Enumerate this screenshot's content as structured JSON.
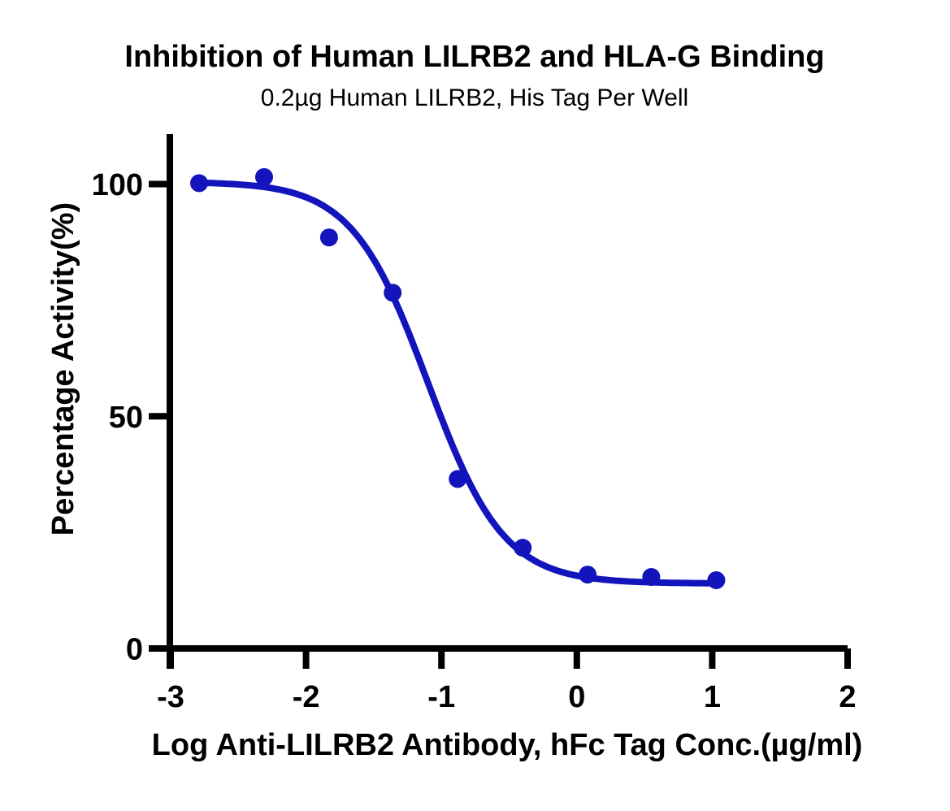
{
  "title": "Inhibition of Human LILRB2 and HLA-G Binding",
  "subtitle": "0.2µg Human LILRB2, His Tag Per Well",
  "chart_data": {
    "type": "scatter",
    "title": "Inhibition of Human LILRB2 and HLA-G Binding",
    "subtitle": "0.2µg Human LILRB2, His Tag Per Well",
    "xlabel": "Log Anti-LILRB2 Antibody, hFc Tag Conc.(µg/ml)",
    "ylabel": "Percentage Activity(%)",
    "x": [
      -2.79,
      -2.31,
      -1.83,
      -1.36,
      -0.88,
      -0.4,
      0.08,
      0.55,
      1.03
    ],
    "y": [
      100.2,
      101.5,
      88.5,
      76.6,
      36.5,
      21.7,
      15.9,
      15.4,
      14.7
    ],
    "xticks": [
      -3,
      -2,
      -1,
      0,
      1,
      2
    ],
    "yticks": [
      0,
      50,
      100
    ],
    "xlim": [
      -3,
      2
    ],
    "ylim": [
      0,
      111
    ],
    "grid": false,
    "legend": null,
    "curve_fit": {
      "model": "sigmoidal-4PL-inhibition",
      "top": 100.5,
      "bottom": 14.0,
      "logIC50": -1.1,
      "hillslope": 1.55,
      "x_start": -2.79,
      "x_end": 1.03
    },
    "series_color": "#1414bd",
    "axis_color": "#000000"
  }
}
